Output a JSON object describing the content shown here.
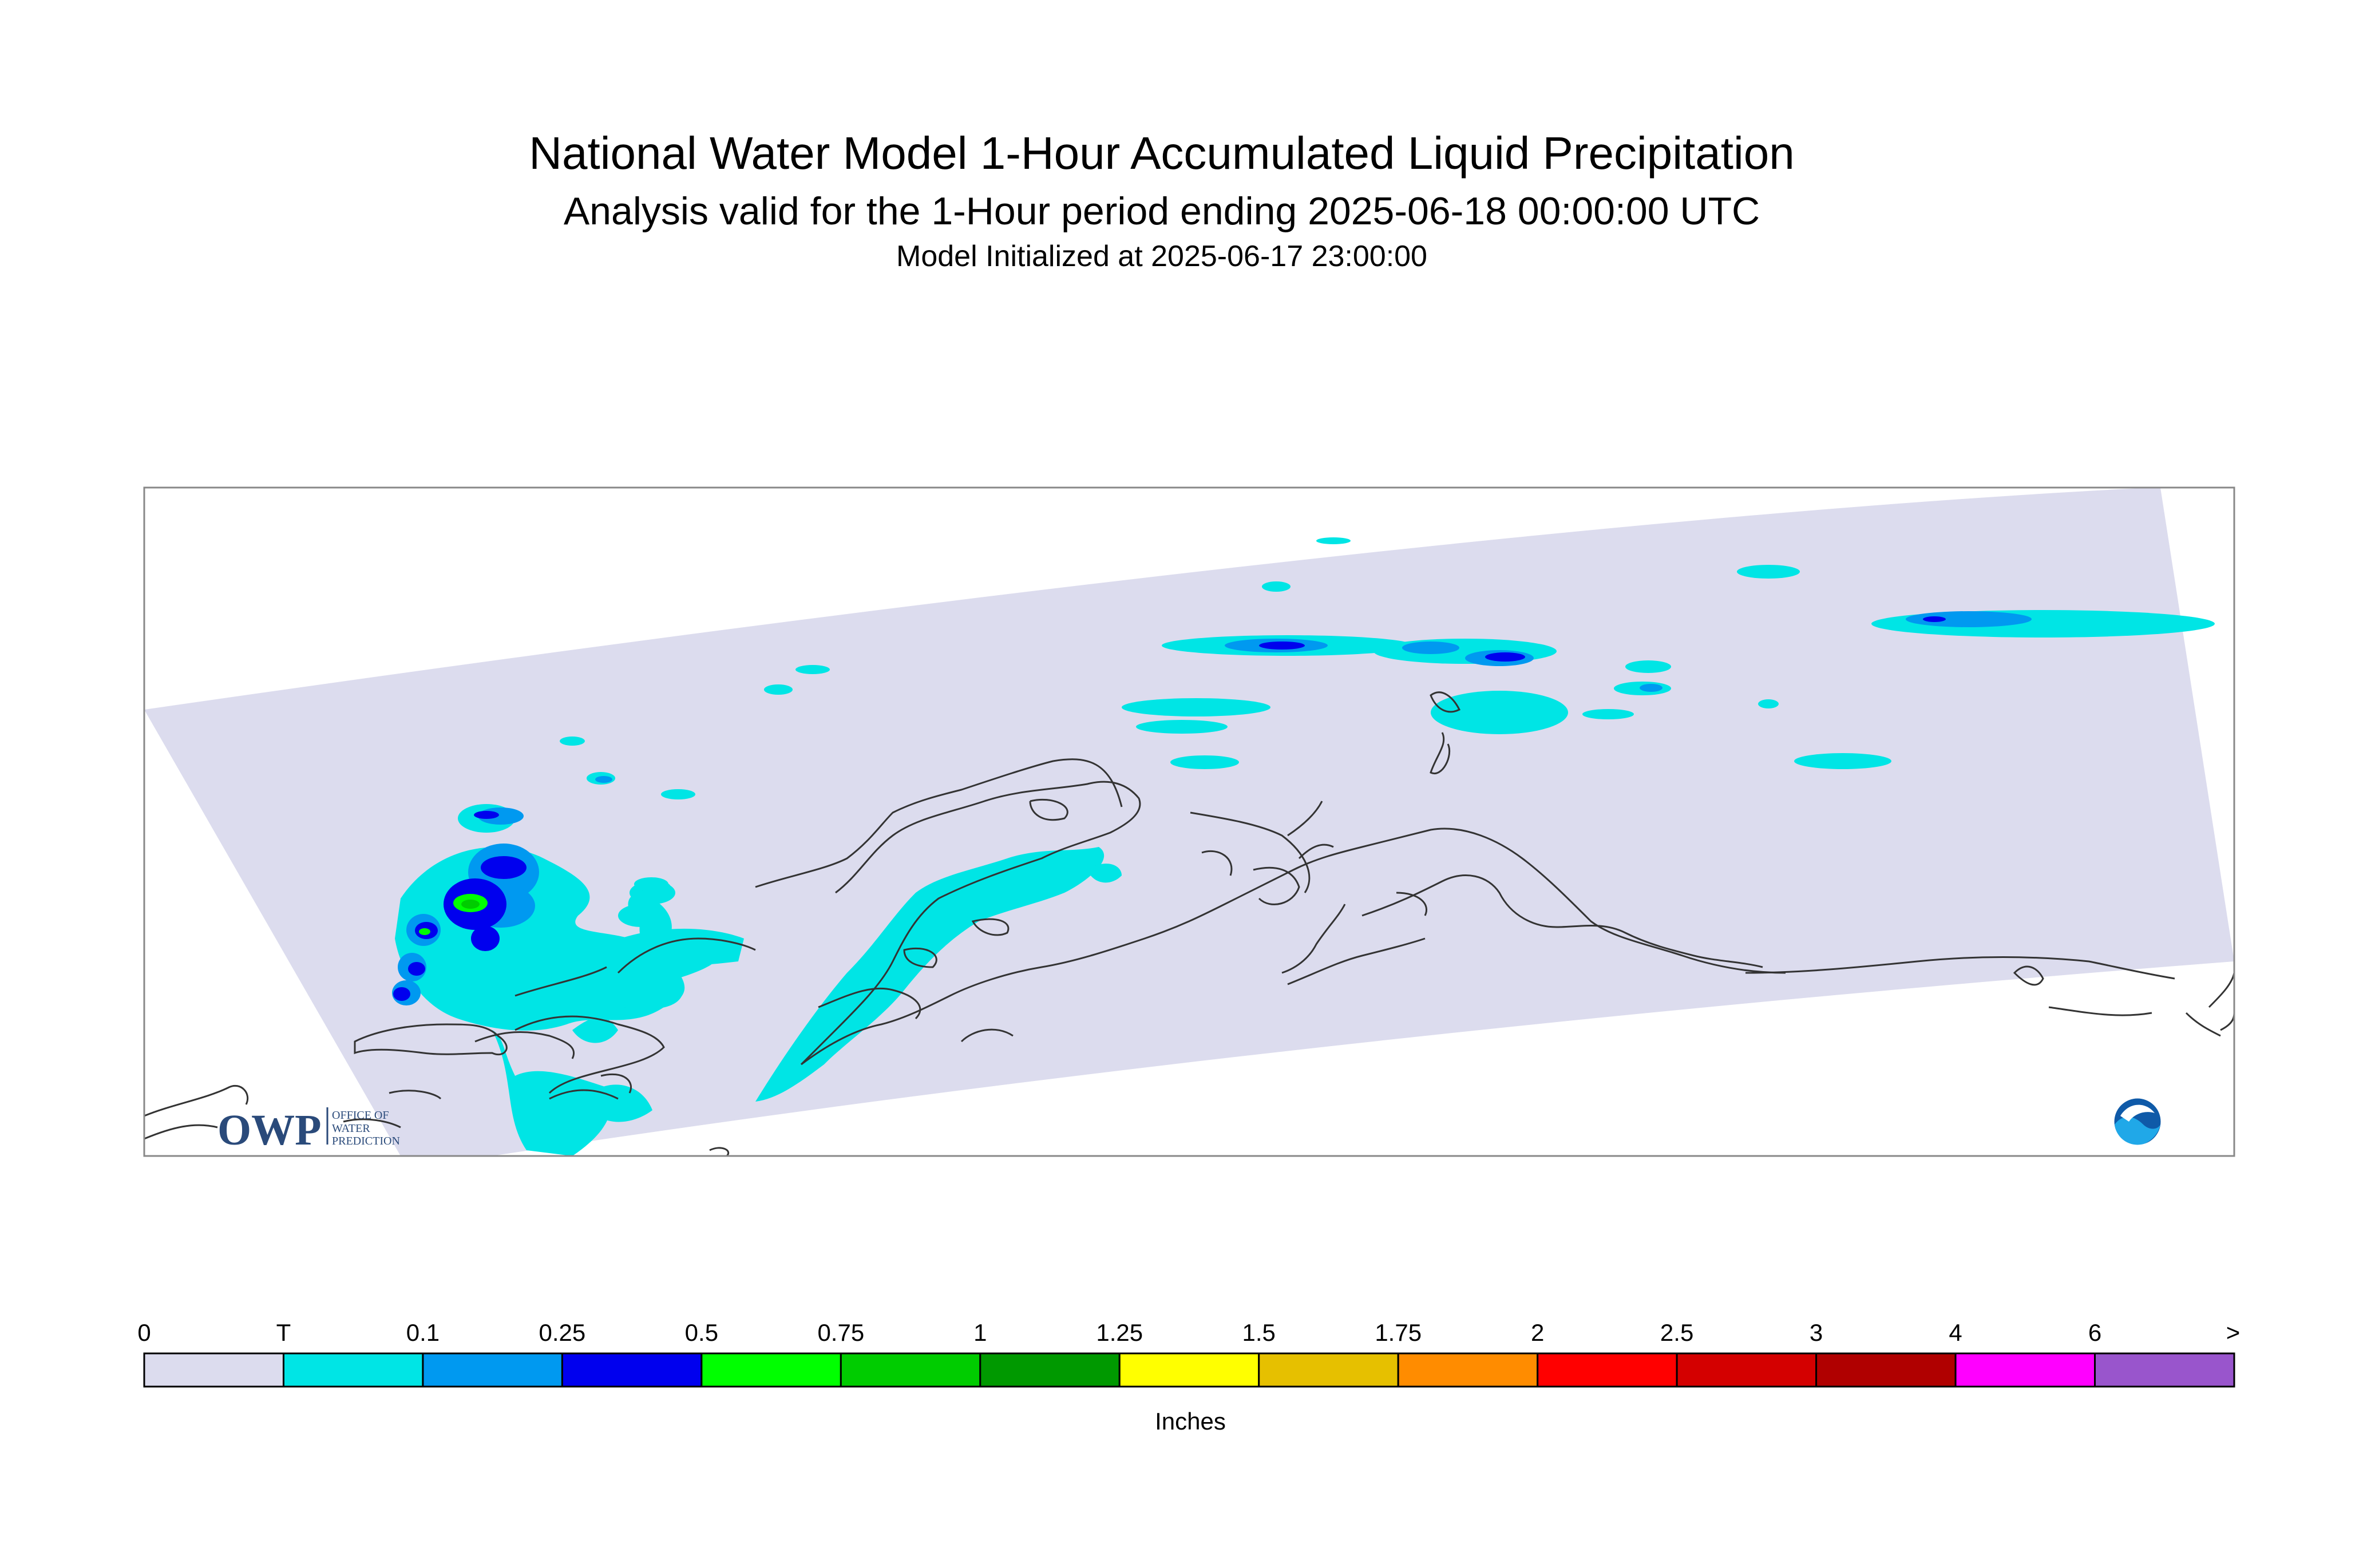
{
  "title": "National Water Model 1-Hour Accumulated Liquid Precipitation",
  "subtitle": "Analysis valid for the 1-Hour period ending 2025-06-18 00:00:00 UTC",
  "init": "Model Initialized at 2025-06-17 23:00:00",
  "logos": {
    "left": "owp-logo",
    "right": "noaa-logo"
  },
  "legend": {
    "units": "Inches",
    "labels": [
      "0",
      "T",
      "0.1",
      "0.25",
      "0.5",
      "0.75",
      "1",
      "1.25",
      "1.5",
      "1.75",
      "2",
      "2.5",
      "3",
      "4",
      "6",
      ">"
    ],
    "colors": [
      "#dcdcee",
      "#00e5e5",
      "#0099f0",
      "#0000ee",
      "#00ff00",
      "#00cc00",
      "#009900",
      "#ffff00",
      "#e6c000",
      "#ff8c00",
      "#ff0000",
      "#d40000",
      "#b00000",
      "#ff00ff",
      "#9955cc"
    ]
  },
  "colors": {
    "domain": "#dcdcee",
    "coast": "#333333",
    "frame": "#888888"
  }
}
